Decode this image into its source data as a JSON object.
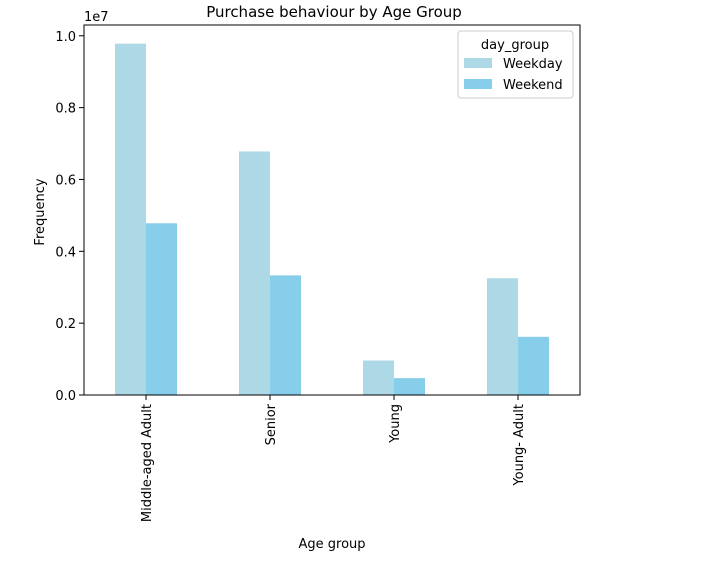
{
  "chart_data": {
    "type": "bar",
    "title": "Purchase behaviour by Age Group",
    "xlabel": "Age group",
    "ylabel": "Frequency",
    "y_scale_label": "1e7",
    "categories": [
      "Middle-aged Adult",
      "Senior",
      "Young",
      "Young- Adult"
    ],
    "series": [
      {
        "name": "Weekday",
        "color": "#add8e6",
        "values": [
          0.978,
          0.678,
          0.096,
          0.325
        ]
      },
      {
        "name": "Weekend",
        "color": "#87ceeb",
        "values": [
          0.478,
          0.333,
          0.047,
          0.162
        ]
      }
    ],
    "ylim": [
      0,
      1.03
    ],
    "yticks": [
      {
        "value": 0.0,
        "label": "0.0"
      },
      {
        "value": 0.2,
        "label": "0.2"
      },
      {
        "value": 0.4,
        "label": "0.4"
      },
      {
        "value": 0.6,
        "label": "0.6"
      },
      {
        "value": 0.8,
        "label": "0.8"
      },
      {
        "value": 1.0,
        "label": "1.0"
      }
    ],
    "legend": {
      "title": "day_group",
      "placement": "top-right"
    },
    "grid": false
  }
}
